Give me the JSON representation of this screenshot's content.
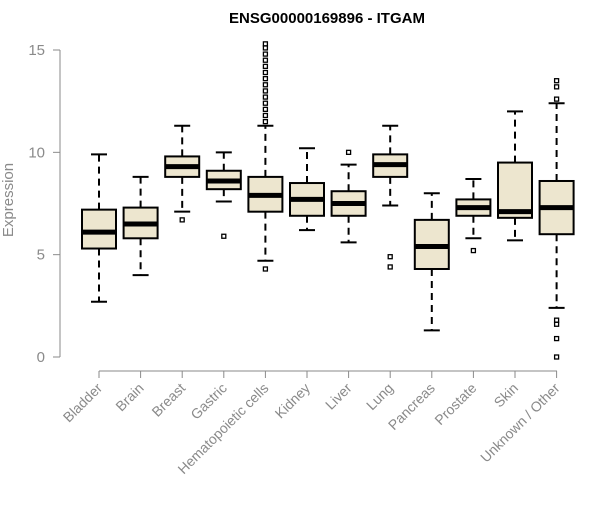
{
  "chart_data": {
    "type": "boxplot",
    "title": "ENSG00000169896 - ITGAM",
    "xlabel": "",
    "ylabel": "Expression",
    "ylim": [
      0,
      15
    ],
    "yticks": [
      0,
      5,
      10,
      15
    ],
    "grid": false,
    "box_color": "#ede6cf",
    "categories": [
      "Bladder",
      "Brain",
      "Breast",
      "Gastric",
      "Hematopoietic cells",
      "Kidney",
      "Liver",
      "Lung",
      "Pancreas",
      "Prostate",
      "Skin",
      "Unknown / Other"
    ],
    "boxes": [
      {
        "category": "Bladder",
        "whisker_low": 2.7,
        "q1": 5.3,
        "median": 6.1,
        "q3": 7.2,
        "whisker_high": 9.9,
        "outliers": []
      },
      {
        "category": "Brain",
        "whisker_low": 4.0,
        "q1": 5.8,
        "median": 6.5,
        "q3": 7.3,
        "whisker_high": 8.8,
        "outliers": []
      },
      {
        "category": "Breast",
        "whisker_low": 7.1,
        "q1": 8.8,
        "median": 9.3,
        "q3": 9.8,
        "whisker_high": 11.3,
        "outliers": [
          6.7
        ]
      },
      {
        "category": "Gastric",
        "whisker_low": 7.6,
        "q1": 8.2,
        "median": 8.6,
        "q3": 9.1,
        "whisker_high": 10.0,
        "outliers": [
          5.9
        ]
      },
      {
        "category": "Hematopoietic cells",
        "whisker_low": 4.7,
        "q1": 7.1,
        "median": 7.9,
        "q3": 8.8,
        "whisker_high": 11.3,
        "outliers": [
          4.3,
          11.5,
          11.8,
          12.1,
          12.4,
          12.7,
          13.0,
          13.3,
          13.6,
          13.9,
          14.2,
          14.5,
          14.8,
          15.1,
          15.3
        ]
      },
      {
        "category": "Kidney",
        "whisker_low": 6.2,
        "q1": 6.9,
        "median": 7.7,
        "q3": 8.5,
        "whisker_high": 10.2,
        "outliers": []
      },
      {
        "category": "Liver",
        "whisker_low": 5.6,
        "q1": 6.9,
        "median": 7.5,
        "q3": 8.1,
        "whisker_high": 9.4,
        "outliers": [
          10.0
        ]
      },
      {
        "category": "Lung",
        "whisker_low": 7.4,
        "q1": 8.8,
        "median": 9.4,
        "q3": 9.9,
        "whisker_high": 11.3,
        "outliers": [
          4.4,
          4.9
        ]
      },
      {
        "category": "Pancreas",
        "whisker_low": 1.3,
        "q1": 4.3,
        "median": 5.4,
        "q3": 6.7,
        "whisker_high": 8.0,
        "outliers": []
      },
      {
        "category": "Prostate",
        "whisker_low": 5.8,
        "q1": 6.9,
        "median": 7.3,
        "q3": 7.7,
        "whisker_high": 8.7,
        "outliers": [
          5.2
        ]
      },
      {
        "category": "Skin",
        "whisker_low": 5.7,
        "q1": 6.8,
        "median": 7.1,
        "q3": 9.5,
        "whisker_high": 12.0,
        "outliers": []
      },
      {
        "category": "Unknown / Other",
        "whisker_low": 2.4,
        "q1": 6.0,
        "median": 7.3,
        "q3": 8.6,
        "whisker_high": 12.4,
        "outliers": [
          0.0,
          0.9,
          1.6,
          1.8,
          12.6,
          13.2,
          13.5
        ]
      }
    ]
  }
}
